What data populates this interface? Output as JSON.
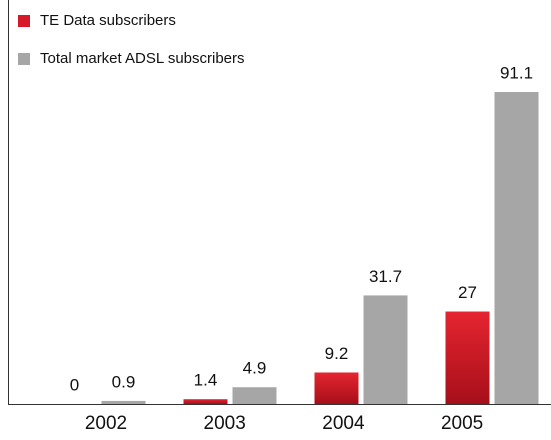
{
  "chart_data": {
    "type": "bar",
    "categories": [
      "2002",
      "2003",
      "2004",
      "2005"
    ],
    "series": [
      {
        "name": "TE Data subscribers",
        "color": "#d7182a",
        "values": [
          0,
          1.4,
          9.2,
          27
        ]
      },
      {
        "name": "Total market ADSL subscribers",
        "color": "#a6a6a6",
        "values": [
          0.9,
          4.9,
          31.7,
          91.1
        ]
      }
    ]
  }
}
